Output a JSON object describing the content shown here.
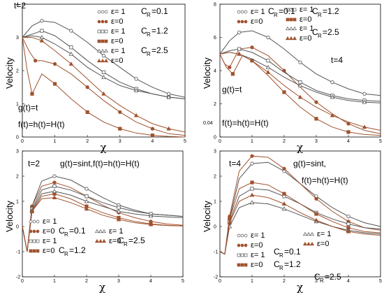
{
  "chart_data": [
    {
      "type": "line",
      "xlabel": "χ",
      "ylabel": "Velocity",
      "xlim": [
        0,
        5
      ],
      "ylim": [
        0,
        4
      ],
      "xticks": [
        0,
        1,
        2,
        3,
        4,
        5
      ],
      "yticks": [
        0,
        1,
        2,
        3,
        4
      ],
      "annotations": [
        "t=2",
        "g(t)=t",
        "f(t)=h(t)=H(t)"
      ],
      "legend": {
        "markers": [
          "ε= 1",
          "ε=0",
          "ε= 1",
          "ε=0",
          "ε= 1",
          "ε=0"
        ],
        "groups": [
          "C",
          "=0.1",
          "C",
          "=1.2",
          "C",
          "=2.5"
        ],
        "sub": "R"
      },
      "series": [
        {
          "marker": "circle",
          "color": "#555555",
          "x": [
            0,
            0.3,
            0.6,
            1,
            1.5,
            2,
            2.5,
            3,
            3.5,
            4,
            4.5,
            5
          ],
          "y": [
            3.0,
            3.35,
            3.5,
            3.45,
            3.2,
            2.85,
            2.45,
            2.1,
            1.75,
            1.5,
            1.3,
            1.2
          ]
        },
        {
          "marker": "circle",
          "color": "#a0522d",
          "x": [
            0,
            0.2,
            0.4,
            0.6,
            1,
            1.5,
            2,
            2.5,
            3,
            3.5,
            4,
            4.5,
            5
          ],
          "y": [
            3.0,
            2.6,
            2.3,
            2.3,
            2.2,
            1.9,
            1.5,
            1.1,
            0.75,
            0.45,
            0.25,
            0.1,
            0.05
          ]
        },
        {
          "marker": "square",
          "color": "#555555",
          "x": [
            0,
            0.3,
            0.6,
            1,
            1.5,
            2,
            2.5,
            3,
            3.5,
            4,
            4.5,
            5
          ],
          "y": [
            3.0,
            3.1,
            3.2,
            3.05,
            2.7,
            2.3,
            1.95,
            1.65,
            1.45,
            1.3,
            1.2,
            1.15
          ]
        },
        {
          "marker": "square",
          "color": "#a0522d",
          "x": [
            0,
            0.15,
            0.3,
            0.6,
            1,
            1.5,
            2,
            2.5,
            3,
            3.5,
            4,
            4.5,
            5
          ],
          "y": [
            3.0,
            2.0,
            1.3,
            1.9,
            1.6,
            1.15,
            0.75,
            0.45,
            0.25,
            0.12,
            0.05,
            0.02,
            0.0
          ]
        },
        {
          "marker": "triangle",
          "color": "#555555",
          "x": [
            0,
            0.3,
            0.6,
            1,
            1.5,
            2,
            2.5,
            3,
            3.5,
            4,
            4.5,
            5
          ],
          "y": [
            3.0,
            3.05,
            3.0,
            2.8,
            2.5,
            2.1,
            1.8,
            1.55,
            1.4,
            1.3,
            1.2,
            1.15
          ]
        },
        {
          "marker": "triangle",
          "color": "#a0522d",
          "x": [
            0,
            0.3,
            0.6,
            1,
            1.5,
            2,
            2.5,
            3,
            3.5,
            4,
            4.5,
            5
          ],
          "y": [
            3.0,
            3.0,
            2.9,
            2.6,
            2.2,
            1.75,
            1.3,
            0.95,
            0.65,
            0.4,
            0.25,
            0.15
          ]
        }
      ]
    },
    {
      "type": "line",
      "xlabel": "χ",
      "ylabel": "Velocity",
      "xlim": [
        0,
        5
      ],
      "ylim": [
        0,
        8
      ],
      "xticks": [
        0,
        1,
        2,
        3,
        4,
        5
      ],
      "yticks": [
        0,
        2,
        4,
        6,
        8
      ],
      "annotations": [
        "t=4",
        "g(t)=t",
        "f(t)=h(t)=H(t)",
        "0.04"
      ],
      "legend": {
        "markers": [
          "ε= 1",
          "ε=0",
          "ε= 1",
          "ε=0",
          "ε= 1",
          "ε=0"
        ],
        "groups": [
          "C",
          "=0.1",
          "C",
          "=1.2",
          "C",
          "=2.5"
        ],
        "sub": "R"
      },
      "series": [
        {
          "marker": "circle",
          "color": "#555555",
          "x": [
            0,
            0.3,
            0.6,
            1,
            1.5,
            2,
            2.5,
            3,
            3.5,
            4,
            4.5,
            5
          ],
          "y": [
            5.0,
            5.8,
            6.3,
            6.4,
            6.0,
            5.3,
            4.5,
            3.8,
            3.3,
            2.9,
            2.6,
            2.5
          ]
        },
        {
          "marker": "circle",
          "color": "#a0522d",
          "x": [
            0,
            0.15,
            0.3,
            0.6,
            1,
            1.5,
            2,
            2.5,
            3,
            3.5,
            4,
            4.5,
            5
          ],
          "y": [
            5.0,
            4.4,
            4.2,
            5.3,
            5.4,
            4.9,
            4.0,
            3.0,
            2.1,
            1.4,
            0.8,
            0.4,
            0.2
          ]
        },
        {
          "marker": "square",
          "color": "#555555",
          "x": [
            0,
            0.3,
            0.6,
            1,
            1.5,
            2,
            2.5,
            3,
            3.5,
            4,
            4.5,
            5
          ],
          "y": [
            5.0,
            5.2,
            5.3,
            5.1,
            4.6,
            3.9,
            3.3,
            2.8,
            2.5,
            2.3,
            2.2,
            2.15
          ]
        },
        {
          "marker": "square",
          "color": "#a0522d",
          "x": [
            0,
            0.2,
            0.4,
            0.7,
            1,
            1.5,
            2,
            2.5,
            3,
            3.5,
            4,
            4.5,
            5
          ],
          "y": [
            5.0,
            4.2,
            3.8,
            4.9,
            4.6,
            3.7,
            2.7,
            1.8,
            1.1,
            0.6,
            0.3,
            0.15,
            0.1
          ]
        },
        {
          "marker": "triangle",
          "color": "#555555",
          "x": [
            0,
            0.3,
            0.6,
            1,
            1.5,
            2,
            2.5,
            3,
            3.5,
            4,
            4.5,
            5
          ],
          "y": [
            5.0,
            5.1,
            5.0,
            4.7,
            4.2,
            3.6,
            3.1,
            2.7,
            2.4,
            2.2,
            2.1,
            2.05
          ]
        },
        {
          "marker": "triangle",
          "color": "#a0522d",
          "x": [
            0,
            0.3,
            0.6,
            1,
            1.5,
            2,
            2.5,
            3,
            3.5,
            4,
            4.5,
            5
          ],
          "y": [
            5.0,
            5.1,
            5.0,
            4.6,
            3.9,
            3.1,
            2.4,
            1.8,
            1.3,
            0.9,
            0.6,
            0.4
          ]
        }
      ]
    },
    {
      "type": "line",
      "xlabel": "χ",
      "ylabel": "Velocity",
      "xlim": [
        0,
        5
      ],
      "ylim": [
        -2,
        3
      ],
      "xticks": [
        0,
        1,
        2,
        3,
        4,
        5
      ],
      "yticks": [
        -2,
        -1,
        0,
        1,
        2,
        3
      ],
      "annotations": [
        "t=2",
        "g(t)=sint,f(t)=h(t)=H(t)"
      ],
      "legend": {
        "markers": [
          "ε= 1",
          "ε=0",
          "ε= 1",
          "ε=0",
          "ε= 1",
          "ε=0"
        ],
        "groups": [
          "C",
          "=0.1",
          "C",
          "=1.2",
          "C",
          "=2.5"
        ],
        "sub": "R"
      },
      "series": [
        {
          "marker": "circle",
          "color": "#555555",
          "x": [
            0,
            0.15,
            0.3,
            0.6,
            1,
            1.5,
            2,
            2.5,
            3,
            3.5,
            4,
            4.5,
            5
          ],
          "y": [
            0,
            -1.0,
            0.8,
            1.8,
            2.0,
            1.85,
            1.5,
            1.15,
            0.85,
            0.65,
            0.5,
            0.45,
            0.4
          ]
        },
        {
          "marker": "circle",
          "color": "#a0522d",
          "x": [
            0,
            0.15,
            0.3,
            0.6,
            1,
            1.5,
            2,
            2.5,
            3,
            3.5,
            4,
            4.5,
            5
          ],
          "y": [
            0,
            -1.0,
            0.8,
            1.6,
            1.75,
            1.55,
            1.2,
            0.85,
            0.55,
            0.35,
            0.2,
            0.1,
            0.05
          ]
        },
        {
          "marker": "square",
          "color": "#555555",
          "x": [
            0,
            0.15,
            0.3,
            0.6,
            1,
            1.5,
            2,
            2.5,
            3,
            3.5,
            4,
            4.5,
            5
          ],
          "y": [
            0,
            -1.0,
            0.7,
            1.45,
            1.6,
            1.45,
            1.2,
            0.95,
            0.75,
            0.6,
            0.5,
            0.45,
            0.4
          ]
        },
        {
          "marker": "square",
          "color": "#a0522d",
          "x": [
            0,
            0.15,
            0.3,
            0.6,
            1,
            1.5,
            2,
            2.5,
            3,
            3.5,
            4,
            4.5,
            5
          ],
          "y": [
            0,
            -1.0,
            0.6,
            1.2,
            1.3,
            1.1,
            0.8,
            0.55,
            0.35,
            0.2,
            0.1,
            0.05,
            0.02
          ]
        },
        {
          "marker": "triangle",
          "color": "#555555",
          "x": [
            0,
            0.15,
            0.3,
            0.6,
            1,
            1.5,
            2,
            2.5,
            3,
            3.5,
            4,
            4.5,
            5
          ],
          "y": [
            0,
            -1.0,
            0.65,
            1.3,
            1.4,
            1.25,
            1.0,
            0.8,
            0.6,
            0.5,
            0.42,
            0.38,
            0.35
          ]
        },
        {
          "marker": "triangle",
          "color": "#a0522d",
          "x": [
            0,
            0.15,
            0.3,
            0.6,
            1,
            1.5,
            2,
            2.5,
            3,
            3.5,
            4,
            4.5,
            5
          ],
          "y": [
            0,
            -1.0,
            0.6,
            1.1,
            1.15,
            0.95,
            0.7,
            0.45,
            0.28,
            0.15,
            0.08,
            0.04,
            0.02
          ]
        }
      ]
    },
    {
      "type": "line",
      "xlabel": "χ",
      "ylabel": "Velocity",
      "xlim": [
        0,
        5
      ],
      "ylim": [
        -2,
        3
      ],
      "xticks": [
        0,
        1,
        2,
        3,
        4,
        5
      ],
      "yticks": [
        -2,
        -1,
        0,
        1,
        2,
        3
      ],
      "annotations": [
        "t=4",
        "g(t)=sint,",
        "f(t)=h(t)=H(t)"
      ],
      "legend": {
        "markers": [
          "ε= 1",
          "ε=0",
          "ε= 1",
          "ε=0",
          "ε= 1",
          "ε=0"
        ],
        "groups": [
          "C",
          "=0.1",
          "C",
          "=1.2",
          "C",
          "=2.5"
        ],
        "sub": "R"
      },
      "series": [
        {
          "marker": "circle",
          "color": "#555555",
          "x": [
            0,
            0.15,
            0.3,
            0.6,
            1,
            1.5,
            2,
            2.5,
            3,
            3.5,
            4,
            4.5,
            5
          ],
          "y": [
            -1.0,
            -1.1,
            0.3,
            1.9,
            2.5,
            2.55,
            2.2,
            1.7,
            1.2,
            0.75,
            0.4,
            0.15,
            0.0
          ]
        },
        {
          "marker": "circle",
          "color": "#a0522d",
          "x": [
            0,
            0.15,
            0.3,
            0.6,
            1,
            1.5,
            2,
            2.5,
            3,
            3.5,
            4,
            4.5,
            5
          ],
          "y": [
            -1.0,
            -1.1,
            0.4,
            2.2,
            2.8,
            2.75,
            2.3,
            1.7,
            1.1,
            0.6,
            0.2,
            -0.05,
            -0.15
          ]
        },
        {
          "marker": "square",
          "color": "#555555",
          "x": [
            0,
            0.15,
            0.3,
            0.6,
            1,
            1.5,
            2,
            2.5,
            3,
            3.5,
            4,
            4.5,
            5
          ],
          "y": [
            -1.0,
            -1.1,
            0.2,
            1.2,
            1.5,
            1.45,
            1.2,
            0.9,
            0.55,
            0.3,
            0.1,
            -0.05,
            -0.1
          ]
        },
        {
          "marker": "square",
          "color": "#a0522d",
          "x": [
            0,
            0.15,
            0.3,
            0.6,
            1,
            1.5,
            2,
            2.5,
            3,
            3.5,
            4,
            4.5,
            5
          ],
          "y": [
            -1.0,
            -1.1,
            0.3,
            1.5,
            1.75,
            1.65,
            1.3,
            0.9,
            0.5,
            0.2,
            -0.05,
            -0.2,
            -0.25
          ]
        },
        {
          "marker": "triangle",
          "color": "#555555",
          "x": [
            0,
            0.15,
            0.3,
            0.6,
            1,
            1.5,
            2,
            2.5,
            3,
            3.5,
            4,
            4.5,
            5
          ],
          "y": [
            -1.0,
            -1.1,
            0.0,
            0.75,
            0.95,
            0.9,
            0.7,
            0.45,
            0.2,
            0.0,
            -0.15,
            -0.25,
            -0.3
          ]
        },
        {
          "marker": "triangle",
          "color": "#a0522d",
          "x": [
            0,
            0.15,
            0.3,
            0.6,
            1,
            1.5,
            2,
            2.5,
            3,
            3.5,
            4,
            4.5,
            5
          ],
          "y": [
            -1.0,
            -1.1,
            0.15,
            1.0,
            1.25,
            1.15,
            0.9,
            0.55,
            0.25,
            0.0,
            -0.2,
            -0.3,
            -0.35
          ]
        }
      ]
    }
  ]
}
